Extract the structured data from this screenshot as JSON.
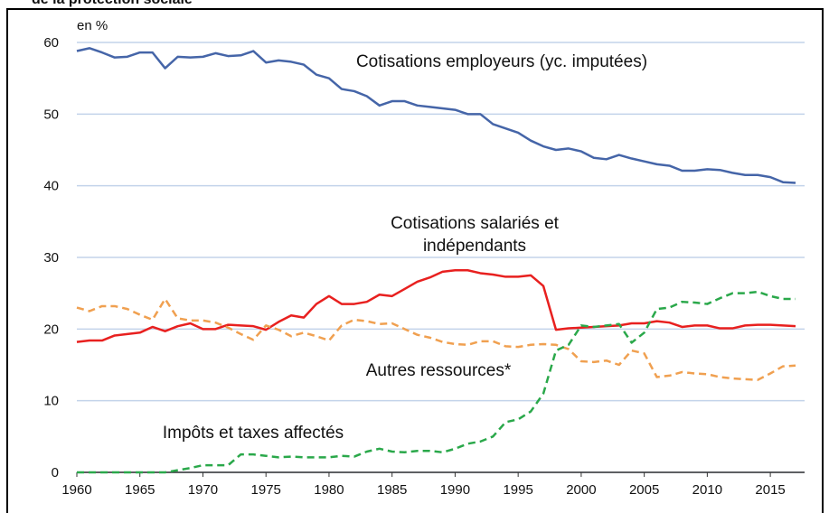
{
  "chart_data": {
    "type": "line",
    "title": "de la protection sociale",
    "y_label": "en %",
    "x": [
      1960,
      1961,
      1962,
      1963,
      1964,
      1965,
      1966,
      1967,
      1968,
      1969,
      1970,
      1971,
      1972,
      1973,
      1974,
      1975,
      1976,
      1977,
      1978,
      1979,
      1980,
      1981,
      1982,
      1983,
      1984,
      1985,
      1986,
      1987,
      1988,
      1989,
      1990,
      1991,
      1992,
      1993,
      1994,
      1995,
      1996,
      1997,
      1998,
      1999,
      2000,
      2001,
      2002,
      2003,
      2004,
      2005,
      2006,
      2007,
      2008,
      2009,
      2010,
      2011,
      2012,
      2013,
      2014,
      2015,
      2016,
      2017
    ],
    "xlim": [
      1960,
      2017
    ],
    "xticks": [
      1960,
      1965,
      1970,
      1975,
      1980,
      1985,
      1990,
      1995,
      2000,
      2005,
      2010,
      2015
    ],
    "ylim": [
      0,
      60
    ],
    "yticks": [
      0,
      10,
      20,
      30,
      40,
      50,
      60
    ],
    "grid": true,
    "series": [
      {
        "name": "Cotisations employeurs (yc. imputées)",
        "color": "#4565a8",
        "dashed": false,
        "values": [
          58.8,
          59.2,
          58.6,
          57.9,
          58.0,
          58.6,
          58.6,
          56.4,
          58.0,
          57.9,
          58.0,
          58.5,
          58.1,
          58.2,
          58.8,
          57.2,
          57.5,
          57.3,
          56.9,
          55.5,
          55.0,
          53.5,
          53.2,
          52.5,
          51.2,
          51.8,
          51.8,
          51.2,
          51.0,
          50.8,
          50.6,
          50.0,
          50.0,
          48.6,
          48.0,
          47.4,
          46.3,
          45.5,
          45.0,
          45.2,
          44.8,
          43.9,
          43.7,
          44.3,
          43.8,
          43.4,
          43.0,
          42.8,
          42.1,
          42.1,
          42.3,
          42.2,
          41.8,
          41.5,
          41.5,
          41.2,
          40.5,
          40.4
        ]
      },
      {
        "name": "Cotisations salariés et indépendants",
        "color": "#e8201f",
        "dashed": false,
        "values": [
          18.2,
          18.4,
          18.4,
          19.1,
          19.3,
          19.5,
          20.3,
          19.7,
          20.4,
          20.8,
          20.0,
          20.0,
          20.6,
          20.5,
          20.4,
          19.9,
          21.0,
          21.9,
          21.6,
          23.5,
          24.6,
          23.5,
          23.5,
          23.8,
          24.8,
          24.6,
          25.6,
          26.6,
          27.2,
          28.0,
          28.2,
          28.2,
          27.8,
          27.6,
          27.3,
          27.3,
          27.5,
          26.0,
          19.9,
          20.1,
          20.2,
          20.3,
          20.4,
          20.5,
          20.8,
          20.8,
          21.1,
          20.9,
          20.3,
          20.5,
          20.5,
          20.1,
          20.1,
          20.5,
          20.6,
          20.6,
          20.5,
          20.4
        ]
      },
      {
        "name": "Autres ressources*",
        "color": "#f0a050",
        "dashed": true,
        "values": [
          23.0,
          22.5,
          23.2,
          23.2,
          22.8,
          22.0,
          21.3,
          24.2,
          21.5,
          21.2,
          21.2,
          20.9,
          20.2,
          19.3,
          18.5,
          20.5,
          19.9,
          19.0,
          19.5,
          19.0,
          18.4,
          20.5,
          21.3,
          21.1,
          20.7,
          20.8,
          20.0,
          19.2,
          18.8,
          18.2,
          17.9,
          17.8,
          18.3,
          18.3,
          17.6,
          17.5,
          17.8,
          17.9,
          17.8,
          17.2,
          15.5,
          15.4,
          15.6,
          15.0,
          17.0,
          16.6,
          13.3,
          13.5,
          14.0,
          13.8,
          13.7,
          13.3,
          13.1,
          13.0,
          12.9,
          13.8,
          14.8,
          14.9
        ]
      },
      {
        "name": "Impôts et taxes affectés",
        "color": "#2aa84a",
        "dashed": true,
        "values": [
          0,
          0,
          0,
          0,
          0,
          0,
          0,
          0,
          0.3,
          0.6,
          1.0,
          1.0,
          1.0,
          2.5,
          2.5,
          2.3,
          2.1,
          2.2,
          2.1,
          2.1,
          2.1,
          2.3,
          2.2,
          2.9,
          3.3,
          2.9,
          2.8,
          3.0,
          3.0,
          2.8,
          3.3,
          4.0,
          4.3,
          5.0,
          7.0,
          7.4,
          8.5,
          11.0,
          17.0,
          17.8,
          20.5,
          20.3,
          20.5,
          20.7,
          18.1,
          19.5,
          22.8,
          23.0,
          23.8,
          23.7,
          23.5,
          24.3,
          25.0,
          25.0,
          25.2,
          24.6,
          24.2,
          24.2
        ]
      }
    ]
  }
}
